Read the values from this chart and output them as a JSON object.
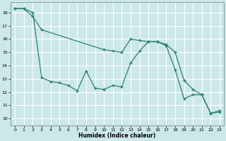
{
  "xlabel": "Humidex (Indice chaleur)",
  "background_color": "#cce8e8",
  "grid_color": "#ffffff",
  "line_color": "#2d7f70",
  "xlim": [
    -0.5,
    23.5
  ],
  "ylim": [
    9.5,
    18.8
  ],
  "yticks": [
    10,
    11,
    12,
    13,
    14,
    15,
    16,
    17,
    18
  ],
  "xticks": [
    0,
    1,
    2,
    3,
    4,
    5,
    6,
    7,
    8,
    9,
    10,
    11,
    12,
    13,
    14,
    15,
    16,
    17,
    18,
    19,
    20,
    21,
    22,
    23
  ],
  "series1_x": [
    0,
    1,
    2,
    3,
    4,
    5,
    6,
    7,
    8,
    9,
    10,
    11,
    12,
    13,
    14,
    15,
    16,
    17,
    18,
    19,
    20,
    21,
    22,
    23
  ],
  "series1_y": [
    18.3,
    18.3,
    18.0,
    13.1,
    12.8,
    12.7,
    12.5,
    12.1,
    13.6,
    12.3,
    12.2,
    12.5,
    12.4,
    14.2,
    15.1,
    15.8,
    15.8,
    15.5,
    13.7,
    11.5,
    11.8,
    11.8,
    10.4,
    10.5
  ],
  "series2_x": [
    0,
    1,
    2,
    3,
    10,
    11,
    12,
    13,
    14,
    15,
    16,
    17,
    18,
    19,
    20,
    21,
    22,
    23
  ],
  "series2_y": [
    18.3,
    18.3,
    17.7,
    16.7,
    15.2,
    15.1,
    15.0,
    16.0,
    15.9,
    15.8,
    15.8,
    15.6,
    15.0,
    12.9,
    12.2,
    11.8,
    10.4,
    10.6
  ]
}
